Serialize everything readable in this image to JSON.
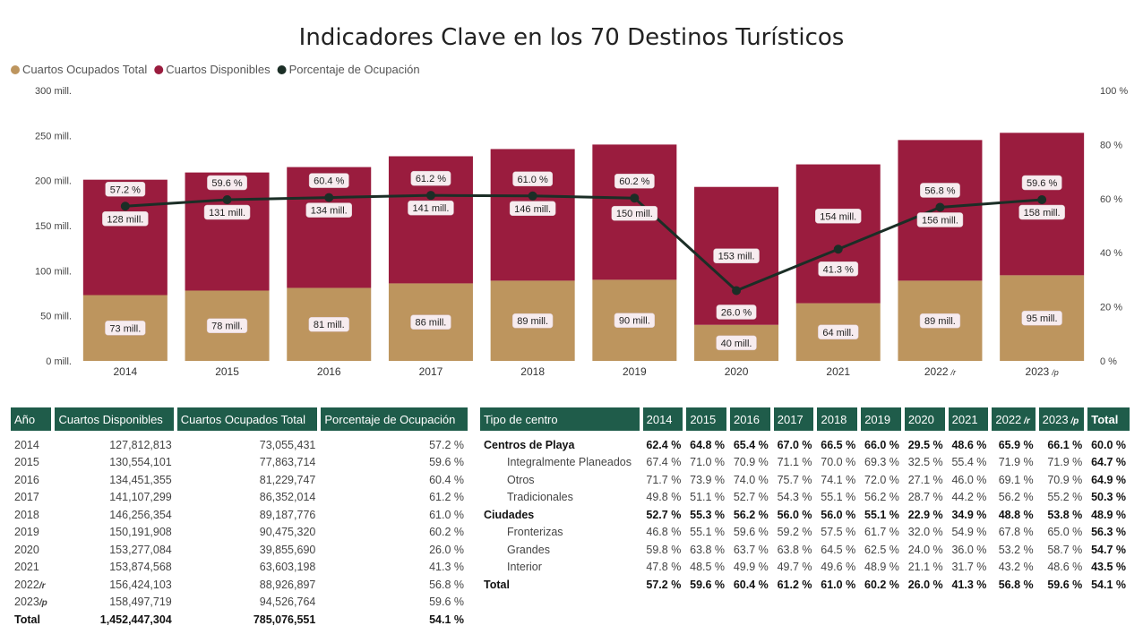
{
  "title": "Indicadores Clave en los 70 Destinos Turísticos",
  "legend": [
    {
      "label": "Cuartos Ocupados Total",
      "color": "#bd955e"
    },
    {
      "label": "Cuartos Disponibles",
      "color": "#9a1c3e"
    },
    {
      "label": "Porcentaje de Ocupación",
      "color": "#1b2e26"
    }
  ],
  "chart_data": {
    "type": "bar",
    "stacked": true,
    "categories": [
      "2014",
      "2015",
      "2016",
      "2017",
      "2018",
      "2019",
      "2020",
      "2021",
      "2022",
      "2023"
    ],
    "category_suffix": [
      "",
      "",
      "",
      "",
      "",
      "",
      "",
      "",
      "/r",
      "/p"
    ],
    "series": [
      {
        "name": "Cuartos Ocupados Total",
        "values": [
          73,
          78,
          81,
          86,
          89,
          90,
          40,
          64,
          89,
          95
        ],
        "labels": [
          "73 mill.",
          "78 mill.",
          "81 mill.",
          "86 mill.",
          "89 mill.",
          "90 mill.",
          "40 mill.",
          "64 mill.",
          "89 mill.",
          "95 mill."
        ]
      },
      {
        "name": "Cuartos Disponibles",
        "values": [
          128,
          131,
          134,
          141,
          146,
          150,
          153,
          154,
          156,
          158
        ],
        "labels": [
          "128 mill.",
          "131 mill.",
          "134 mill.",
          "141 mill.",
          "146 mill.",
          "150 mill.",
          "153 mill.",
          "154 mill.",
          "156 mill.",
          "158 mill."
        ]
      },
      {
        "name": "Porcentaje de Ocupación",
        "type": "line",
        "axis": "right",
        "values": [
          57.2,
          59.6,
          60.4,
          61.2,
          61.0,
          60.2,
          26.0,
          41.3,
          56.8,
          59.6
        ],
        "labels": [
          "57.2 %",
          "59.6 %",
          "60.4 %",
          "61.2 %",
          "61.0 %",
          "60.2 %",
          "26.0 %",
          "41.3 %",
          "56.8 %",
          "59.6 %"
        ]
      }
    ],
    "ylim": [
      0,
      300
    ],
    "yticks": [
      "0 mill.",
      "50 mill.",
      "100 mill.",
      "150 mill.",
      "200 mill.",
      "250 mill.",
      "300 mill."
    ],
    "y2lim": [
      0,
      100
    ],
    "y2ticks": [
      "0 %",
      "20 %",
      "40 %",
      "60 %",
      "80 %",
      "100 %"
    ],
    "legend_position": "top-left",
    "grid": false
  },
  "table1": {
    "headers": [
      "Año",
      "Cuartos Disponibles",
      "Cuartos Ocupados Total",
      "Porcentaje de Ocupación"
    ],
    "rows": [
      {
        "year": "2014",
        "suffix": "",
        "disp": "127,812,813",
        "ocup": "73,055,431",
        "pct": "57.2 %"
      },
      {
        "year": "2015",
        "suffix": "",
        "disp": "130,554,101",
        "ocup": "77,863,714",
        "pct": "59.6 %"
      },
      {
        "year": "2016",
        "suffix": "",
        "disp": "134,451,355",
        "ocup": "81,229,747",
        "pct": "60.4 %"
      },
      {
        "year": "2017",
        "suffix": "",
        "disp": "141,107,299",
        "ocup": "86,352,014",
        "pct": "61.2 %"
      },
      {
        "year": "2018",
        "suffix": "",
        "disp": "146,256,354",
        "ocup": "89,187,776",
        "pct": "61.0 %"
      },
      {
        "year": "2019",
        "suffix": "",
        "disp": "150,191,908",
        "ocup": "90,475,320",
        "pct": "60.2 %"
      },
      {
        "year": "2020",
        "suffix": "",
        "disp": "153,277,084",
        "ocup": "39,855,690",
        "pct": "26.0 %"
      },
      {
        "year": "2021",
        "suffix": "",
        "disp": "153,874,568",
        "ocup": "63,603,198",
        "pct": "41.3 %"
      },
      {
        "year": "2022",
        "suffix": "/r",
        "disp": "156,424,103",
        "ocup": "88,926,897",
        "pct": "56.8 %"
      },
      {
        "year": "2023",
        "suffix": "/p",
        "disp": "158,497,719",
        "ocup": "94,526,764",
        "pct": "59.6 %"
      }
    ],
    "total": {
      "label": "Total",
      "disp": "1,452,447,304",
      "ocup": "785,076,551",
      "pct": "54.1 %"
    }
  },
  "table2": {
    "headers": [
      {
        "text": "Tipo de centro",
        "suffix": ""
      },
      {
        "text": "2014",
        "suffix": ""
      },
      {
        "text": "2015",
        "suffix": ""
      },
      {
        "text": "2016",
        "suffix": ""
      },
      {
        "text": "2017",
        "suffix": ""
      },
      {
        "text": "2018",
        "suffix": ""
      },
      {
        "text": "2019",
        "suffix": ""
      },
      {
        "text": "2020",
        "suffix": ""
      },
      {
        "text": "2021",
        "suffix": ""
      },
      {
        "text": "2022",
        "suffix": "/r"
      },
      {
        "text": "2023",
        "suffix": "/p"
      },
      {
        "text": "Total",
        "suffix": ""
      }
    ],
    "rows": [
      {
        "name": "Centros de Playa",
        "level": 0,
        "values": [
          "62.4 %",
          "64.8 %",
          "65.4 %",
          "67.0 %",
          "66.5 %",
          "66.0 %",
          "29.5 %",
          "48.6 %",
          "65.9 %",
          "66.1 %"
        ],
        "total": "60.0 %"
      },
      {
        "name": "Integralmente Planeados",
        "level": 1,
        "values": [
          "67.4 %",
          "71.0 %",
          "70.9 %",
          "71.1 %",
          "70.0 %",
          "69.3 %",
          "32.5 %",
          "55.4 %",
          "71.9 %",
          "71.9 %"
        ],
        "total": "64.7 %"
      },
      {
        "name": "Otros",
        "level": 1,
        "values": [
          "71.7 %",
          "73.9 %",
          "74.0 %",
          "75.7 %",
          "74.1 %",
          "72.0 %",
          "27.1 %",
          "46.0 %",
          "69.1 %",
          "70.9 %"
        ],
        "total": "64.9 %"
      },
      {
        "name": "Tradicionales",
        "level": 1,
        "values": [
          "49.8 %",
          "51.1 %",
          "52.7 %",
          "54.3 %",
          "55.1 %",
          "56.2 %",
          "28.7 %",
          "44.2 %",
          "56.2 %",
          "55.2 %"
        ],
        "total": "50.3 %"
      },
      {
        "name": "Ciudades",
        "level": 0,
        "values": [
          "52.7 %",
          "55.3 %",
          "56.2 %",
          "56.0 %",
          "56.0 %",
          "55.1 %",
          "22.9 %",
          "34.9 %",
          "48.8 %",
          "53.8 %"
        ],
        "total": "48.9 %"
      },
      {
        "name": "Fronterizas",
        "level": 1,
        "values": [
          "46.8 %",
          "55.1 %",
          "59.6 %",
          "59.2 %",
          "57.5 %",
          "61.7 %",
          "32.0 %",
          "54.9 %",
          "67.8 %",
          "65.0 %"
        ],
        "total": "56.3 %"
      },
      {
        "name": "Grandes",
        "level": 1,
        "values": [
          "59.8 %",
          "63.8 %",
          "63.7 %",
          "63.8 %",
          "64.5 %",
          "62.5 %",
          "24.0 %",
          "36.0 %",
          "53.2 %",
          "58.7 %"
        ],
        "total": "54.7 %"
      },
      {
        "name": "Interior",
        "level": 1,
        "values": [
          "47.8 %",
          "48.5 %",
          "49.9 %",
          "49.7 %",
          "49.6 %",
          "48.9 %",
          "21.1 %",
          "31.7 %",
          "43.2 %",
          "48.6 %"
        ],
        "total": "43.5 %"
      },
      {
        "name": "Total",
        "level": 0,
        "values": [
          "57.2 %",
          "59.6 %",
          "60.4 %",
          "61.2 %",
          "61.0 %",
          "60.2 %",
          "26.0 %",
          "41.3 %",
          "56.8 %",
          "59.6 %"
        ],
        "total": "54.1 %"
      }
    ]
  }
}
